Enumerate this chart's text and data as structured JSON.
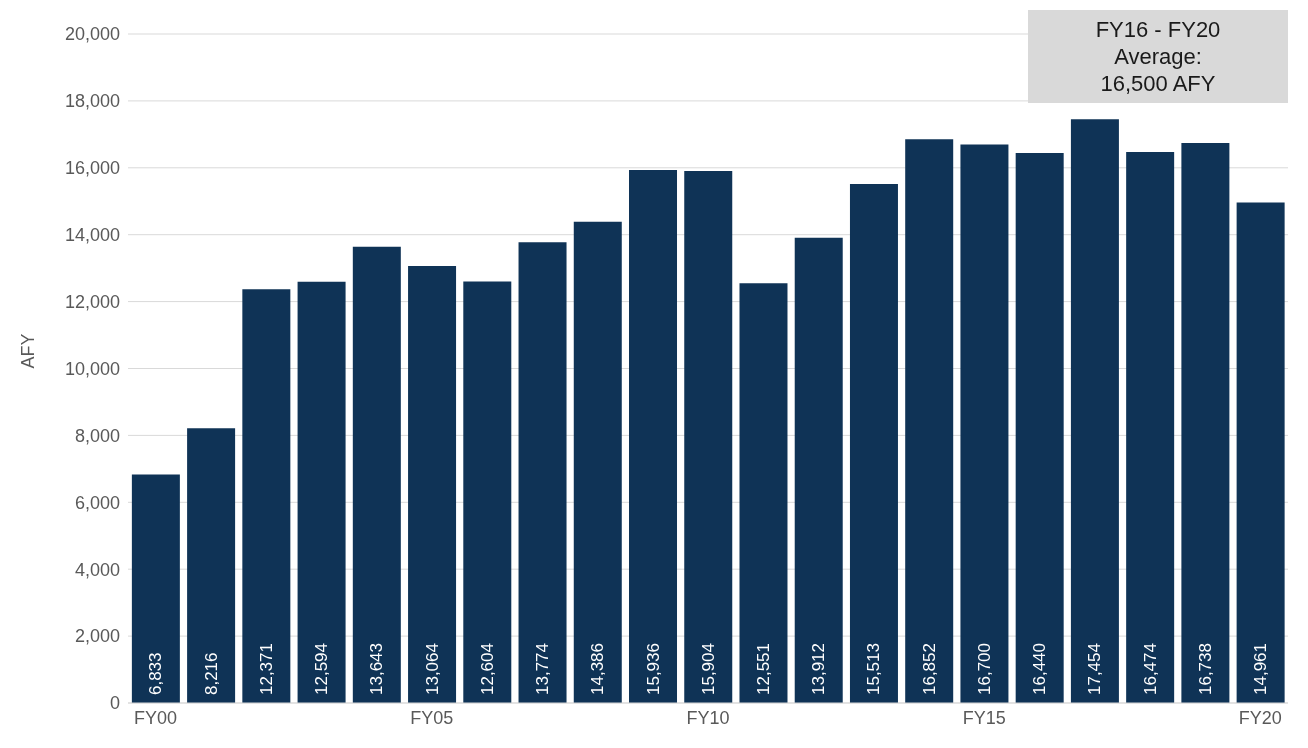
{
  "chart_data": {
    "type": "bar",
    "ylabel": "AFY",
    "categories": [
      "FY00",
      null,
      null,
      null,
      null,
      "FY05",
      null,
      null,
      null,
      null,
      "FY10",
      null,
      null,
      null,
      null,
      "FY15",
      null,
      null,
      null,
      null,
      "FY20"
    ],
    "values": [
      6833,
      8216,
      12371,
      12594,
      13643,
      13064,
      12604,
      13774,
      14386,
      15936,
      15904,
      12551,
      13912,
      15513,
      16852,
      16700,
      16440,
      17454,
      16474,
      16738,
      14961
    ],
    "value_labels": [
      "6,833",
      "8,216",
      "12,371",
      "12,594",
      "13,643",
      "13,064",
      "12,604",
      "13,774",
      "14,386",
      "15,936",
      "15,904",
      "12,551",
      "13,912",
      "15,513",
      "16,852",
      "16,700",
      "16,440",
      "17,454",
      "16,474",
      "16,738",
      "14,961"
    ],
    "color": "#0f3356",
    "ylim": [
      0,
      20000
    ],
    "yticks": [
      0,
      {
        "value": 2000,
        "label": "2,000"
      },
      {
        "value": 4000,
        "label": "4,000"
      },
      {
        "value": 6000,
        "label": "6,000"
      },
      {
        "value": 8000,
        "label": "8,000"
      },
      {
        "value": 10000,
        "label": "10,000"
      },
      {
        "value": 12000,
        "label": "12,000"
      },
      {
        "value": 14000,
        "label": "14,000"
      },
      {
        "value": 16000,
        "label": "16,000"
      },
      {
        "value": 18000,
        "label": "18,000"
      },
      {
        "value": 20000,
        "label": "20,000"
      }
    ],
    "grid": "y",
    "annotations": [
      "FY16 - FY20\nAverage:\n16,500 AFY"
    ]
  }
}
